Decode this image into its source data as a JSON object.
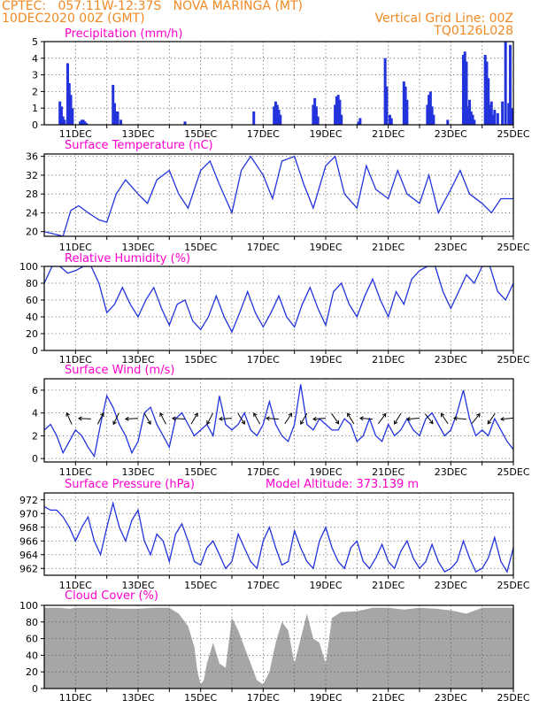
{
  "header": {
    "line1_left": "CPTEC:   057:11W-12:37S   NOVA MARINGA (MT)",
    "line2_left": "10DEC2020 00Z (GMT)",
    "line2_right": "Vertical Grid Line: 00Z",
    "line3_right": "TQ0126L028",
    "color": "#f08a24"
  },
  "style": {
    "title_color": "#ff00cc",
    "line_color": "#2233dd",
    "bar_color": "#2233dd",
    "cloud_color": "#a6a6a6"
  },
  "x_axis": {
    "start_day": 10,
    "end_day": 25,
    "tick_labels": [
      "11DEC",
      "13DEC",
      "15DEC",
      "17DEC",
      "19DEC",
      "21DEC",
      "23DEC",
      "25DEC"
    ]
  },
  "chart_data": [
    {
      "id": "precip",
      "type": "bar",
      "title": "Precipitation (mm/h)",
      "ylim": [
        0,
        5
      ],
      "yticks": [
        0,
        1,
        2,
        3,
        4,
        5
      ],
      "grid": true,
      "x": [
        10.5,
        10.55,
        10.6,
        10.65,
        10.75,
        10.8,
        10.85,
        10.9,
        11.15,
        11.2,
        11.25,
        11.3,
        11.35,
        12.2,
        12.25,
        12.3,
        12.35,
        12.45,
        14.5,
        16.7,
        17.35,
        17.4,
        17.45,
        17.5,
        17.55,
        18.6,
        18.65,
        18.7,
        18.75,
        19.3,
        19.35,
        19.4,
        19.45,
        19.5,
        20.05,
        20.1,
        20.9,
        20.95,
        21.05,
        21.1,
        21.5,
        21.55,
        21.6,
        22.25,
        22.3,
        22.35,
        22.4,
        22.45,
        22.9,
        23.4,
        23.45,
        23.5,
        23.55,
        23.6,
        23.65,
        23.7,
        23.75,
        24.1,
        24.15,
        24.2,
        24.25,
        24.3,
        24.35,
        24.4,
        24.5,
        24.65,
        24.75,
        24.85,
        24.9,
        24.95
      ],
      "values": [
        1.4,
        1.1,
        0.5,
        0.3,
        3.7,
        2.5,
        1.8,
        1.0,
        0.2,
        0.3,
        0.3,
        0.2,
        0.1,
        2.4,
        1.3,
        0.8,
        0.8,
        0.3,
        0.2,
        0.8,
        1.1,
        1.4,
        1.2,
        0.9,
        0.6,
        1.2,
        1.6,
        1.1,
        0.5,
        1.2,
        1.7,
        1.8,
        1.5,
        0.6,
        0.2,
        0.4,
        4.0,
        2.3,
        0.6,
        0.4,
        2.6,
        2.3,
        1.5,
        1.2,
        1.8,
        2.0,
        1.1,
        0.6,
        0.3,
        4.2,
        4.4,
        3.8,
        1.1,
        1.5,
        0.8,
        0.6,
        0.3,
        4.2,
        3.8,
        2.8,
        1.2,
        1.4,
        0.6,
        0.9,
        0.7,
        1.4,
        5.0,
        1.3,
        4.8,
        1.0
      ]
    },
    {
      "id": "temp",
      "type": "line",
      "title": "Surface Temperature (nC)",
      "ylim": [
        19,
        36.5
      ],
      "yticks": [
        20,
        24,
        28,
        32,
        36
      ],
      "grid": true,
      "x": [
        10.0,
        10.3,
        10.6,
        10.85,
        11.1,
        11.4,
        11.75,
        12.0,
        12.3,
        12.6,
        13.0,
        13.3,
        13.6,
        14.0,
        14.3,
        14.6,
        15.0,
        15.3,
        15.6,
        16.0,
        16.3,
        16.6,
        17.0,
        17.3,
        17.6,
        18.0,
        18.3,
        18.6,
        19.0,
        19.3,
        19.6,
        20.0,
        20.3,
        20.6,
        21.0,
        21.3,
        21.6,
        22.0,
        22.3,
        22.6,
        23.0,
        23.3,
        23.6,
        24.0,
        24.3,
        24.6,
        25.0
      ],
      "values": [
        20,
        19.5,
        19,
        24.5,
        25.5,
        24,
        22.5,
        22,
        28,
        31,
        28,
        26,
        31,
        33,
        28,
        25,
        33,
        35,
        30,
        24,
        33,
        36,
        32,
        27,
        35,
        36,
        30,
        25,
        34,
        36,
        28,
        25,
        34,
        29,
        27,
        33,
        28,
        26,
        32,
        24,
        29,
        33,
        28,
        26,
        24,
        27,
        27
      ]
    },
    {
      "id": "rh",
      "type": "line",
      "title": "Relative Humidity (%)",
      "ylim": [
        0,
        100
      ],
      "yticks": [
        0,
        20,
        40,
        60,
        80,
        100
      ],
      "grid": true,
      "x": [
        10.0,
        10.25,
        10.5,
        10.75,
        11.0,
        11.25,
        11.5,
        11.75,
        12.0,
        12.25,
        12.5,
        12.75,
        13.0,
        13.25,
        13.5,
        13.75,
        14.0,
        14.25,
        14.5,
        14.75,
        15.0,
        15.25,
        15.5,
        15.75,
        16.0,
        16.25,
        16.5,
        16.75,
        17.0,
        17.25,
        17.5,
        17.75,
        18.0,
        18.25,
        18.5,
        18.75,
        19.0,
        19.25,
        19.5,
        19.75,
        20.0,
        20.25,
        20.5,
        20.75,
        21.0,
        21.25,
        21.5,
        21.75,
        22.0,
        22.25,
        22.5,
        22.75,
        23.0,
        23.25,
        23.5,
        23.75,
        24.0,
        24.25,
        24.5,
        24.75,
        25.0
      ],
      "values": [
        80,
        100,
        100,
        92,
        95,
        100,
        100,
        80,
        45,
        55,
        75,
        55,
        40,
        60,
        75,
        50,
        30,
        55,
        60,
        35,
        25,
        40,
        65,
        40,
        22,
        45,
        70,
        45,
        28,
        45,
        65,
        40,
        28,
        55,
        75,
        50,
        30,
        70,
        80,
        55,
        40,
        65,
        85,
        60,
        40,
        70,
        55,
        85,
        95,
        100,
        100,
        70,
        50,
        70,
        90,
        80,
        100,
        100,
        70,
        60,
        80
      ]
    },
    {
      "id": "wind",
      "type": "line",
      "title": "Surface Wind (m/s)",
      "ylim": [
        -0.3,
        7
      ],
      "yticks": [
        0,
        2,
        4,
        6
      ],
      "grid": true,
      "x": [
        10.0,
        10.2,
        10.4,
        10.6,
        10.8,
        11.0,
        11.2,
        11.4,
        11.6,
        11.8,
        12.0,
        12.2,
        12.4,
        12.6,
        12.8,
        13.0,
        13.2,
        13.4,
        13.6,
        13.8,
        14.0,
        14.2,
        14.4,
        14.6,
        14.8,
        15.0,
        15.2,
        15.4,
        15.6,
        15.8,
        16.0,
        16.2,
        16.4,
        16.6,
        16.8,
        17.0,
        17.2,
        17.4,
        17.6,
        17.8,
        18.0,
        18.2,
        18.4,
        18.6,
        18.8,
        19.0,
        19.2,
        19.4,
        19.6,
        19.8,
        20.0,
        20.2,
        20.4,
        20.6,
        20.8,
        21.0,
        21.2,
        21.4,
        21.6,
        21.8,
        22.0,
        22.2,
        22.4,
        22.6,
        22.8,
        23.0,
        23.2,
        23.4,
        23.6,
        23.8,
        24.0,
        24.2,
        24.4,
        24.6,
        24.8,
        25.0
      ],
      "values": [
        2.5,
        3,
        2,
        0.5,
        1.5,
        2.5,
        2,
        1,
        0.2,
        3,
        5.5,
        4.5,
        3,
        2,
        0.5,
        1.5,
        4,
        4.5,
        3,
        2,
        1,
        3.5,
        4,
        3,
        2,
        2.5,
        3,
        2,
        5.5,
        3,
        2.5,
        3,
        4,
        2.5,
        2,
        3,
        5,
        3,
        2,
        1.5,
        3,
        6.5,
        3,
        2.5,
        3.5,
        3,
        2.5,
        2.5,
        3.5,
        3,
        1.5,
        2,
        3.5,
        2,
        1.5,
        3,
        2,
        2.5,
        3.5,
        2.5,
        2,
        3.5,
        4,
        3,
        2,
        2.5,
        4,
        6,
        3.5,
        2,
        2.5,
        2,
        3.5,
        2.5,
        1.5,
        0.8
      ]
    },
    {
      "id": "psfc",
      "type": "line",
      "title": "Surface Pressure (hPa)",
      "extra_label": "Model Altitude: 373.139 m",
      "ylim": [
        961,
        973
      ],
      "yticks": [
        962,
        964,
        966,
        968,
        970,
        972
      ],
      "grid": true,
      "x": [
        10.0,
        10.2,
        10.4,
        10.6,
        10.8,
        11.0,
        11.2,
        11.4,
        11.6,
        11.8,
        12.0,
        12.2,
        12.4,
        12.6,
        12.8,
        13.0,
        13.2,
        13.4,
        13.6,
        13.8,
        14.0,
        14.2,
        14.4,
        14.6,
        14.8,
        15.0,
        15.2,
        15.4,
        15.6,
        15.8,
        16.0,
        16.2,
        16.4,
        16.6,
        16.8,
        17.0,
        17.2,
        17.4,
        17.6,
        17.8,
        18.0,
        18.2,
        18.4,
        18.6,
        18.8,
        19.0,
        19.2,
        19.4,
        19.6,
        19.8,
        20.0,
        20.2,
        20.4,
        20.6,
        20.8,
        21.0,
        21.2,
        21.4,
        21.6,
        21.8,
        22.0,
        22.2,
        22.4,
        22.6,
        22.8,
        23.0,
        23.2,
        23.4,
        23.6,
        23.8,
        24.0,
        24.2,
        24.4,
        24.6,
        24.8,
        25.0
      ],
      "values": [
        971,
        970.5,
        970.5,
        969.5,
        968,
        966,
        968,
        969.5,
        966,
        964,
        968,
        971.5,
        968,
        966,
        969,
        970.5,
        966,
        964,
        967,
        966,
        963,
        967,
        968.5,
        966,
        963,
        962.5,
        965,
        966,
        964,
        962,
        963,
        967,
        965,
        963,
        962,
        966,
        968,
        965,
        962.5,
        963,
        967.5,
        965,
        963,
        962,
        966,
        968,
        965,
        963,
        962,
        965,
        966,
        963,
        962,
        963.5,
        965.5,
        963,
        962,
        964.5,
        966,
        963.5,
        962,
        963,
        965.5,
        963,
        961.5,
        962,
        963,
        966,
        963.5,
        961.5,
        962,
        963.5,
        966.5,
        963,
        961.5,
        965
      ]
    },
    {
      "id": "cloud",
      "type": "area",
      "title": "Cloud Cover (%)",
      "ylim": [
        0,
        100
      ],
      "yticks": [
        0,
        20,
        40,
        60,
        80,
        100
      ],
      "grid": true,
      "x": [
        10.0,
        10.5,
        10.8,
        11.0,
        11.5,
        12.0,
        12.5,
        13.0,
        13.5,
        14.0,
        14.3,
        14.6,
        14.8,
        14.9,
        15.0,
        15.1,
        15.2,
        15.4,
        15.6,
        15.8,
        16.0,
        16.2,
        16.4,
        16.6,
        16.8,
        17.0,
        17.2,
        17.4,
        17.6,
        17.8,
        18.0,
        18.2,
        18.4,
        18.6,
        18.8,
        19.0,
        19.2,
        19.5,
        20.0,
        20.5,
        21.0,
        21.5,
        22.0,
        22.5,
        23.0,
        23.5,
        24.0,
        24.5,
        25.0
      ],
      "values": [
        97,
        97,
        96,
        97,
        97,
        97,
        96,
        96,
        97,
        97,
        90,
        75,
        50,
        20,
        5,
        10,
        30,
        55,
        30,
        25,
        85,
        70,
        50,
        30,
        10,
        5,
        20,
        55,
        80,
        70,
        30,
        60,
        90,
        60,
        55,
        30,
        85,
        92,
        93,
        97,
        97,
        95,
        97,
        96,
        94,
        90,
        97,
        97,
        97
      ]
    }
  ]
}
